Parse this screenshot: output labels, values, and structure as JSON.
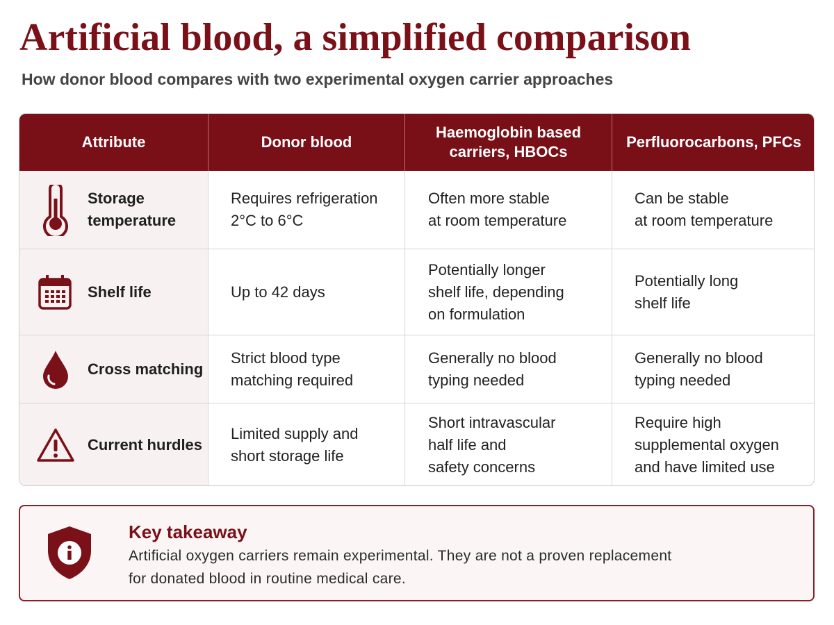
{
  "header": {
    "title": "Artificial blood, a simplified comparison",
    "subtitle": "How donor blood compares with two experimental oxygen carrier approaches"
  },
  "table": {
    "columns": [
      [
        "Attribute"
      ],
      [
        "Donor blood"
      ],
      [
        "Haemoglobin based",
        "carriers, HBOCs"
      ],
      [
        "Perfluorocarbons, PFCs"
      ]
    ],
    "rows": [
      [
        [
          "Storage",
          "temperature"
        ],
        [
          "Requires refrigeration",
          "2°C to 6°C"
        ],
        [
          "Often more stable",
          "at room temperature"
        ],
        [
          "Can be stable",
          "at room temperature"
        ]
      ],
      [
        [
          "Shelf life"
        ],
        [
          "Up to 42 days"
        ],
        [
          "Potentially longer",
          "shelf life, depending",
          "on formulation"
        ],
        [
          "Potentially long",
          "shelf life"
        ]
      ],
      [
        [
          "Cross matching"
        ],
        [
          "Strict blood type",
          "matching required"
        ],
        [
          "Generally no blood",
          "typing needed"
        ],
        [
          "Generally no blood",
          "typing needed"
        ]
      ],
      [
        [
          "Current hurdles"
        ],
        [
          "Limited supply and",
          "short storage life"
        ],
        [
          "Short intravascular",
          "half life and",
          "safety concerns"
        ],
        [
          "Require high",
          "supplemental oxygen",
          "and have limited use"
        ]
      ]
    ]
  },
  "takeaway": {
    "title": "Key takeaway",
    "lines": [
      "Artificial oxygen carriers remain experimental. They are not a proven replacement",
      "for donated blood in routine medical care."
    ]
  }
}
